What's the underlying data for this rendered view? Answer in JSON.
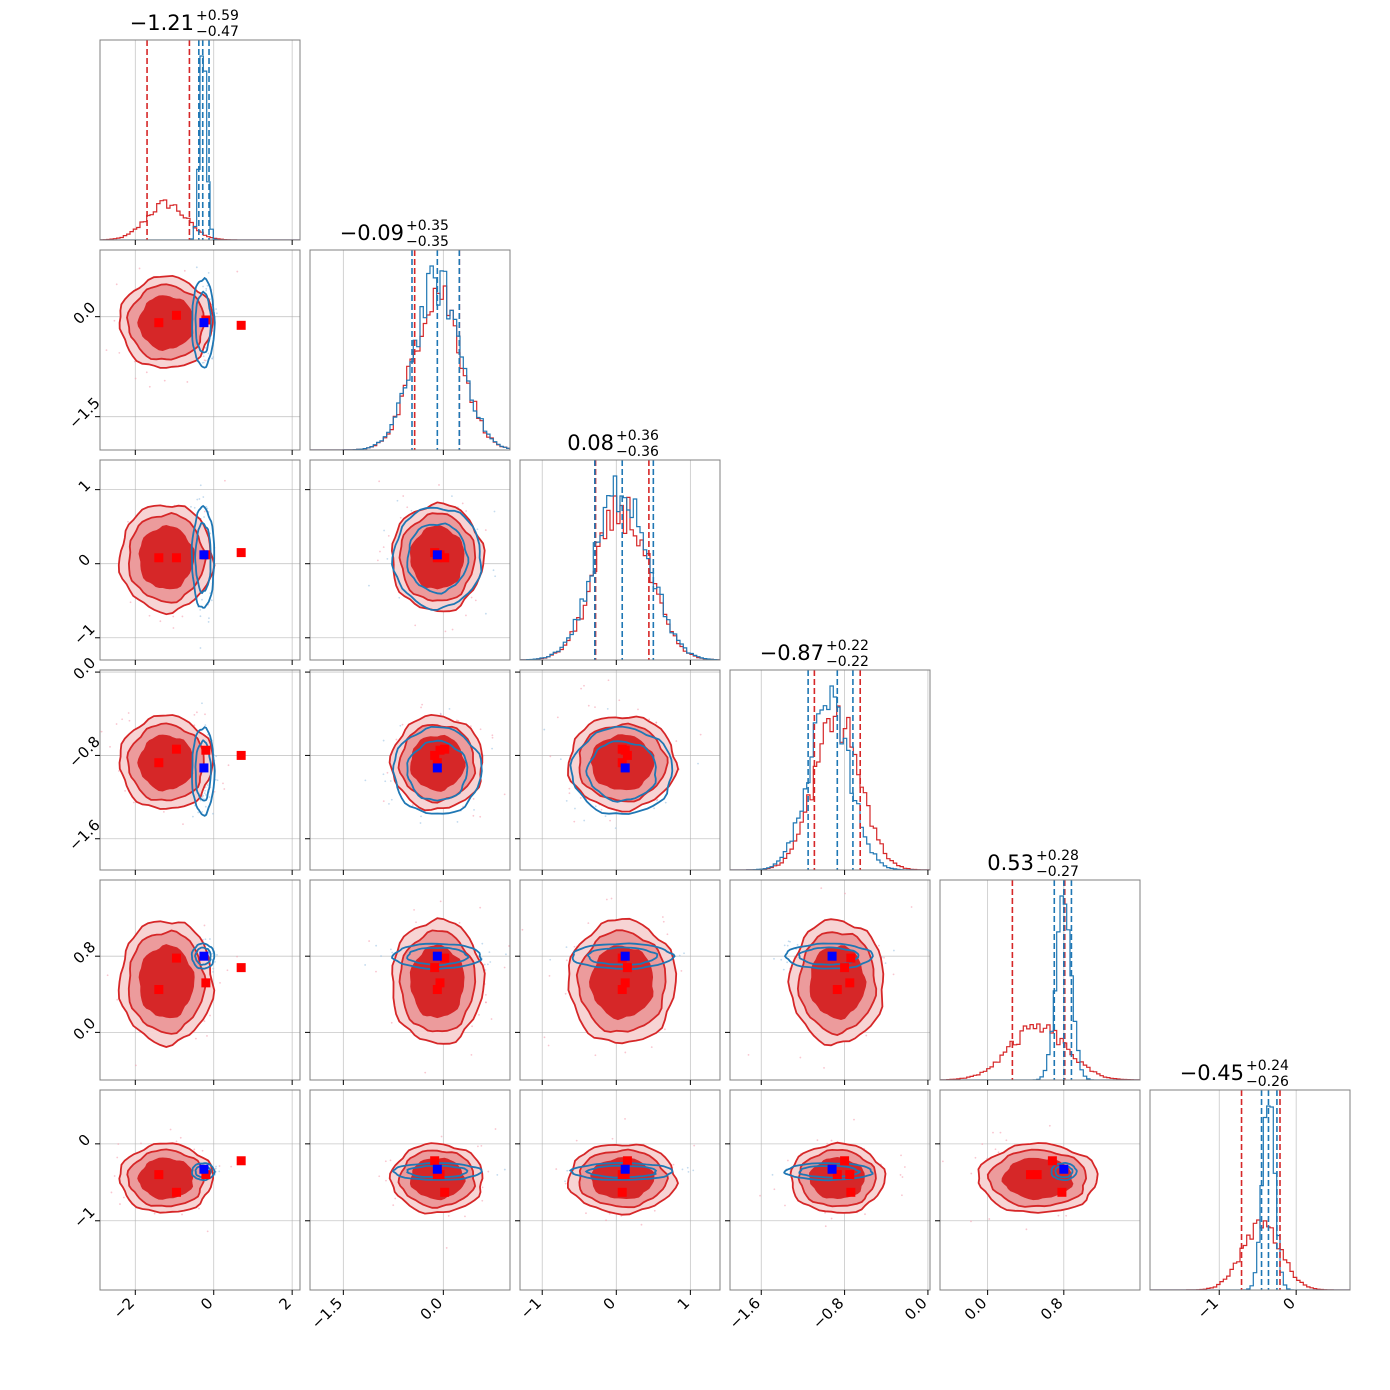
{
  "chart_data": {
    "type": "corner",
    "n_params": 6,
    "colors": {
      "red": "#d62728",
      "red_fill_mid": "#ec9b9c",
      "red_fill_light": "#f7d4d4",
      "blue": "#1f77b4",
      "marker_red": "#ff0000",
      "marker_blue": "#0000ff"
    },
    "params": [
      {
        "title": "−1.21",
        "sup": "+0.59",
        "sub": "−0.47",
        "range": [
          -2.9,
          2.2
        ],
        "ticks": [
          {
            "v": -2,
            "l": "−2"
          },
          {
            "v": 0,
            "l": "0"
          },
          {
            "v": 2,
            "l": "2"
          }
        ],
        "red_q": [
          -1.7,
          -0.62
        ],
        "blue_q": [
          -0.38,
          -0.28,
          -0.12
        ],
        "red": {
          "mean": -1.21,
          "sd": 0.5,
          "rx": 0.95,
          "ry": 0.7
        },
        "blue": {
          "mean": -0.27,
          "sd": 0.09,
          "rx": 0.26,
          "ry": 0.68
        }
      },
      {
        "title": "−0.09",
        "sup": "+0.35",
        "sub": "−0.35",
        "range": [
          -2.0,
          1.0
        ],
        "ticks": [
          {
            "v": -1.5,
            "l": "−1.5"
          },
          {
            "v": 0,
            "l": "0.0"
          }
        ],
        "red_q": [
          -0.43,
          0.24
        ],
        "blue_q": [
          -0.47,
          -0.09,
          0.24
        ],
        "red": {
          "mean": -0.09,
          "sd": 0.35,
          "rx": 0.55,
          "ry": 0.55
        },
        "blue": {
          "mean": -0.09,
          "sd": 0.35,
          "rx": 0.6,
          "ry": 0.6
        }
      },
      {
        "title": "0.08",
        "sup": "+0.36",
        "sub": "−0.36",
        "range": [
          -1.3,
          1.4
        ],
        "ticks": [
          {
            "v": -1,
            "l": "−1"
          },
          {
            "v": 0,
            "l": "0"
          },
          {
            "v": 1,
            "l": "1"
          }
        ],
        "red_q": [
          -0.28,
          0.44
        ],
        "blue_q": [
          -0.29,
          0.08,
          0.5
        ],
        "red": {
          "mean": 0.08,
          "sd": 0.36,
          "rx": 0.58,
          "ry": 0.58
        },
        "blue": {
          "mean": 0.08,
          "sd": 0.36,
          "rx": 0.62,
          "ry": 0.62
        }
      },
      {
        "title": "−0.87",
        "sup": "+0.22",
        "sub": "−0.22",
        "range": [
          -1.9,
          0.02
        ],
        "ticks": [
          {
            "v": -1.6,
            "l": "−1.6"
          },
          {
            "v": -0.8,
            "l": "−0.8"
          },
          {
            "v": 0,
            "l": "0.0"
          }
        ],
        "red_q": [
          -1.09,
          -0.65
        ],
        "blue_q": [
          -1.15,
          -0.87,
          -0.72
        ],
        "red": {
          "mean": -0.87,
          "sd": 0.22,
          "rx": 0.36,
          "ry": 0.36
        },
        "blue": {
          "mean": -0.95,
          "sd": 0.2,
          "rx": 0.38,
          "ry": 0.38
        }
      },
      {
        "title": "0.53",
        "sup": "+0.28",
        "sub": "−0.27",
        "range": [
          -0.5,
          1.6
        ],
        "ticks": [
          {
            "v": 0,
            "l": "0.0"
          },
          {
            "v": 0.8,
            "l": "0.8"
          }
        ],
        "red_q": [
          0.26,
          0.81
        ],
        "blue_q": [
          0.7,
          0.8,
          0.88
        ],
        "red": {
          "mean": 0.53,
          "sd": 0.3,
          "rx": 0.5,
          "ry": 0.52
        },
        "blue": {
          "mean": 0.8,
          "sd": 0.08,
          "rx": 0.12,
          "ry": 0.12
        }
      },
      {
        "title": "−0.45",
        "sup": "+0.24",
        "sub": "−0.26",
        "range": [
          -1.9,
          0.7
        ],
        "ticks": [
          {
            "v": -1,
            "l": "−1"
          },
          {
            "v": 0,
            "l": "0"
          }
        ],
        "red_q": [
          -0.71,
          -0.21
        ],
        "blue_q": [
          -0.45,
          -0.36,
          -0.25
        ],
        "red": {
          "mean": -0.45,
          "sd": 0.25,
          "rx": 0.4,
          "ry": 0.36
        },
        "blue": {
          "mean": -0.36,
          "sd": 0.08,
          "rx": 0.12,
          "ry": 0.1
        }
      }
    ],
    "ylabel_ticks": [
      null,
      [
        {
          "v": 0,
          "l": "0.0"
        },
        {
          "v": -1.5,
          "l": "−1.5"
        }
      ],
      [
        {
          "v": 1,
          "l": "1"
        },
        {
          "v": 0,
          "l": "0"
        },
        {
          "v": -1,
          "l": "−1"
        }
      ],
      [
        {
          "v": 0,
          "l": "0.0"
        },
        {
          "v": -0.8,
          "l": "−0.8"
        },
        {
          "v": -1.6,
          "l": "−1.6"
        }
      ],
      [
        {
          "v": 0.8,
          "l": "0.8"
        },
        {
          "v": 0,
          "l": "0.0"
        }
      ],
      [
        {
          "v": 0,
          "l": "0"
        },
        {
          "v": -1,
          "l": "−1"
        }
      ]
    ],
    "red_markers": [
      [
        -1.4,
        -0.09,
        0.08,
        -0.87,
        0.45,
        -0.4
      ],
      [
        -0.95,
        0.02,
        0.08,
        -0.74,
        0.78,
        -0.63
      ],
      [
        0.7,
        -0.13,
        0.15,
        -0.8,
        0.68,
        -0.22
      ],
      [
        -0.2,
        -0.05,
        0.12,
        -0.75,
        0.52,
        -0.4
      ]
    ],
    "blue_marker": [
      -0.25,
      -0.09,
      0.12,
      -0.92,
      0.8,
      -0.33
    ]
  }
}
